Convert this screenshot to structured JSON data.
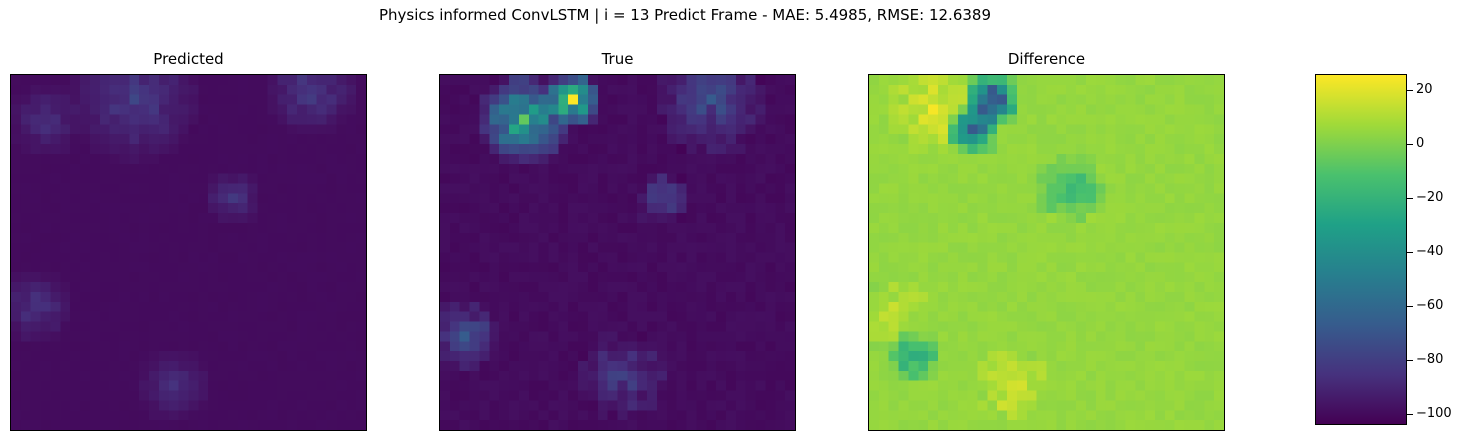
{
  "chart_data": {
    "title": "Physics informed ConvLSTM | i = 13 Predict Frame - MAE: 5.4985, RMSE: 12.6389",
    "type": "heatmap",
    "colormap": "viridis",
    "grid": false,
    "grid_size": [
      36,
      36
    ],
    "panels": [
      {
        "title": "Predicted",
        "base_value": -100,
        "blobs": [
          {
            "cx": 12,
            "cy": 2,
            "r": 7,
            "v": -80
          },
          {
            "cx": 30,
            "cy": 1,
            "r": 5,
            "v": -80
          },
          {
            "cx": 3,
            "cy": 4,
            "r": 4,
            "v": -86
          },
          {
            "cx": 22,
            "cy": 12,
            "r": 3,
            "v": -82
          },
          {
            "cx": 2,
            "cy": 23,
            "r": 4,
            "v": -84
          },
          {
            "cx": 16,
            "cy": 31,
            "r": 4,
            "v": -86
          }
        ]
      },
      {
        "title": "True",
        "base_value": -100,
        "blobs": [
          {
            "cx": 8,
            "cy": 4,
            "r": 5,
            "v": -20
          },
          {
            "cx": 13,
            "cy": 2,
            "r": 3,
            "v": 10
          },
          {
            "cx": 27,
            "cy": 2,
            "r": 6,
            "v": -70
          },
          {
            "cx": 22,
            "cy": 12,
            "r": 3,
            "v": -75
          },
          {
            "cx": 2,
            "cy": 26,
            "r": 4,
            "v": -70
          },
          {
            "cx": 18,
            "cy": 30,
            "r": 5,
            "v": -80
          }
        ]
      },
      {
        "title": "Difference",
        "base_value": 5,
        "blobs": [
          {
            "cx": 6,
            "cy": 3,
            "r": 5,
            "v": 22
          },
          {
            "cx": 10,
            "cy": 5,
            "r": 3,
            "v": -70
          },
          {
            "cx": 12,
            "cy": 2,
            "r": 3,
            "v": -90
          },
          {
            "cx": 20,
            "cy": 11,
            "r": 4,
            "v": -20
          },
          {
            "cx": 2,
            "cy": 24,
            "r": 4,
            "v": 15
          },
          {
            "cx": 4,
            "cy": 28,
            "r": 3,
            "v": -40
          },
          {
            "cx": 14,
            "cy": 31,
            "r": 4,
            "v": 20
          }
        ]
      }
    ],
    "colorbar": {
      "range": [
        -104,
        26
      ],
      "ticks": [
        20,
        0,
        -20,
        -40,
        -60,
        -80,
        -100
      ],
      "tick_labels": [
        "20",
        "0",
        "−20",
        "−40",
        "−60",
        "−80",
        "−100"
      ]
    }
  }
}
